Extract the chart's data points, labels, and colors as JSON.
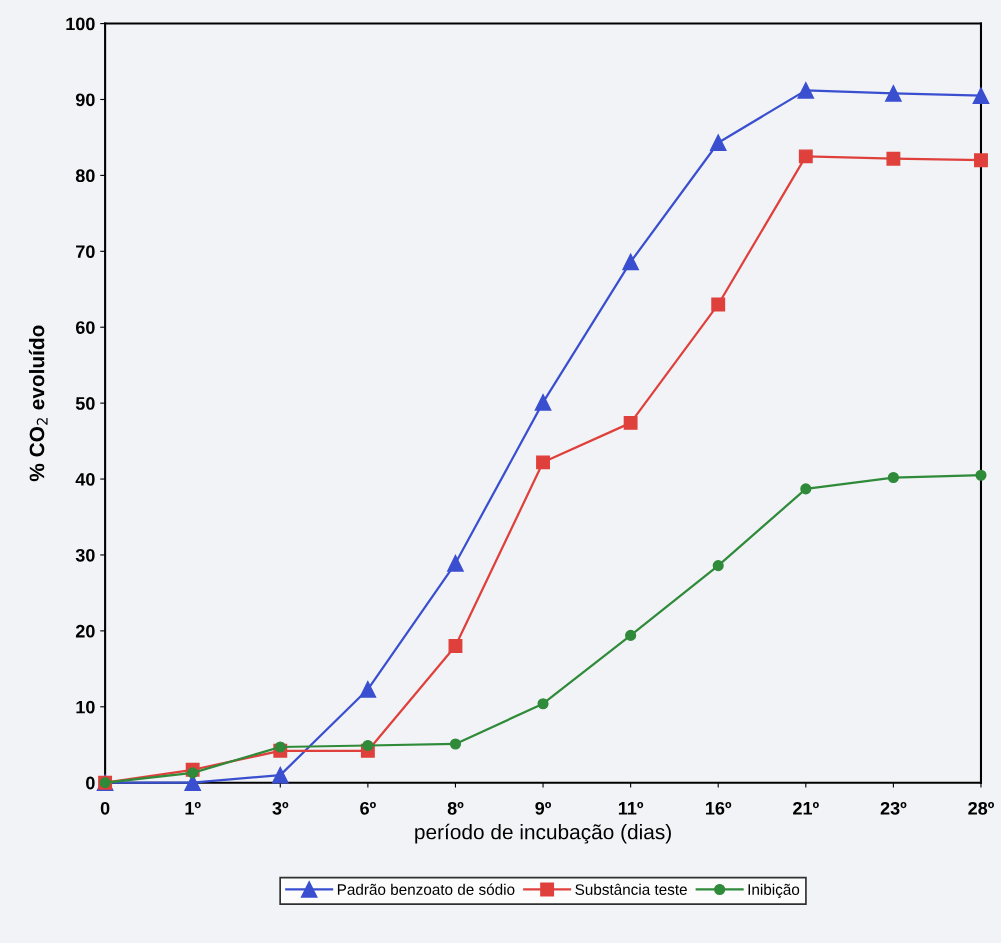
{
  "chart_data": {
    "type": "line",
    "xlabel": "período de incubação (dias)",
    "ylabel": "% CO$_{2}$ evoluído",
    "categories": [
      "0",
      "1º",
      "3º",
      "6º",
      "8º",
      "9º",
      "11º",
      "16º",
      "21º",
      "23º",
      "28º"
    ],
    "series": [
      {
        "name": "Padrão benzoato de sódio",
        "color": "#3a4fd0",
        "marker": "triangle",
        "values": [
          0,
          0,
          1,
          12.3,
          28.9,
          50.1,
          68.6,
          84.3,
          91.2,
          90.8,
          90.5
        ]
      },
      {
        "name": "Substância teste",
        "color": "#e0403c",
        "marker": "square",
        "values": [
          0,
          1.7,
          4.2,
          4.2,
          18,
          42.2,
          47.4,
          63,
          82.5,
          82.2,
          82
        ]
      },
      {
        "name": "Inibição",
        "color": "#2f8a3a",
        "marker": "circle",
        "values": [
          0,
          1.3,
          4.7,
          4.9,
          5.1,
          10.4,
          19.4,
          28.6,
          38.7,
          40.2,
          40.5
        ]
      }
    ],
    "ylim": [
      0,
      100
    ],
    "yticks": [
      0,
      10,
      20,
      30,
      40,
      50,
      60,
      70,
      80,
      90,
      100
    ],
    "grid": false,
    "legend": "bottom",
    "line_style": "solid"
  }
}
